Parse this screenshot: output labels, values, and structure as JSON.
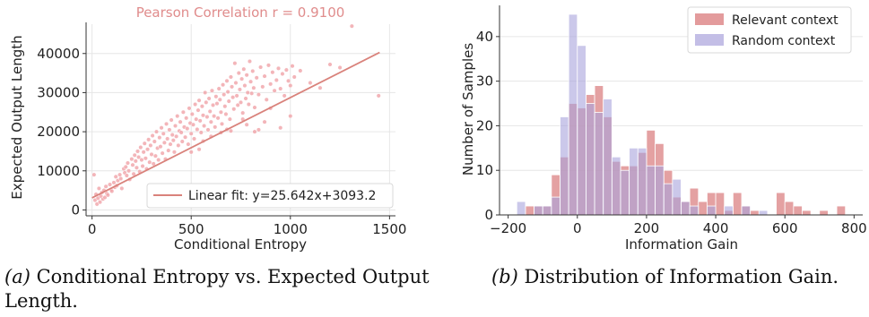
{
  "colors": {
    "scatter": "#f0a3a8",
    "fit_line": "#d9827b",
    "title": "#e08c8c",
    "relevant": "#d9797b",
    "random": "#a9a3dc",
    "grid": "#e6e6e6"
  },
  "captions": {
    "a_label": "(a)",
    "a_text": "Conditional Entropy vs. Expected Output Length.",
    "b_label": "(b)",
    "b_text": "Distribution of Information Gain."
  },
  "chart_data": [
    {
      "type": "scatter",
      "title": "Pearson Correlation r = 0.9100",
      "xlabel": "Conditional Entropy",
      "ylabel": "Expected Output Length",
      "xlim": [
        -30,
        1530
      ],
      "ylim": [
        -1500,
        47500
      ],
      "xticks": [
        0,
        500,
        1000,
        1500
      ],
      "yticks": [
        0,
        10000,
        20000,
        30000,
        40000
      ],
      "grid": true,
      "legend": {
        "position": "lower-right",
        "entries": [
          "Linear fit: y=25.642x+3093.2"
        ]
      },
      "fit": {
        "slope": 25.642,
        "intercept": 3093.2,
        "x_range": [
          0,
          1450
        ]
      },
      "points": [
        [
          10,
          9000
        ],
        [
          15,
          2500
        ],
        [
          20,
          4000
        ],
        [
          25,
          1500
        ],
        [
          30,
          3000
        ],
        [
          35,
          5500
        ],
        [
          40,
          2000
        ],
        [
          45,
          3500
        ],
        [
          50,
          4500
        ],
        [
          55,
          2800
        ],
        [
          60,
          5000
        ],
        [
          65,
          3200
        ],
        [
          70,
          6000
        ],
        [
          75,
          4200
        ],
        [
          80,
          3800
        ],
        [
          90,
          6500
        ],
        [
          95,
          5200
        ],
        [
          100,
          4800
        ],
        [
          110,
          7000
        ],
        [
          115,
          5800
        ],
        [
          120,
          8500
        ],
        [
          125,
          6200
        ],
        [
          130,
          7500
        ],
        [
          140,
          9000
        ],
        [
          145,
          8000
        ],
        [
          150,
          5500
        ],
        [
          160,
          10500
        ],
        [
          165,
          9500
        ],
        [
          170,
          11000
        ],
        [
          175,
          8800
        ],
        [
          180,
          12000
        ],
        [
          185,
          10000
        ],
        [
          190,
          7800
        ],
        [
          200,
          13000
        ],
        [
          205,
          11500
        ],
        [
          210,
          9200
        ],
        [
          215,
          14000
        ],
        [
          220,
          12500
        ],
        [
          225,
          10800
        ],
        [
          230,
          15000
        ],
        [
          235,
          13500
        ],
        [
          240,
          9800
        ],
        [
          245,
          16000
        ],
        [
          250,
          12800
        ],
        [
          255,
          11200
        ],
        [
          260,
          14800
        ],
        [
          265,
          17000
        ],
        [
          270,
          13200
        ],
        [
          275,
          10500
        ],
        [
          280,
          15500
        ],
        [
          285,
          18000
        ],
        [
          290,
          12200
        ],
        [
          295,
          16500
        ],
        [
          300,
          14200
        ],
        [
          305,
          19000
        ],
        [
          310,
          11800
        ],
        [
          315,
          17500
        ],
        [
          320,
          13800
        ],
        [
          325,
          20000
        ],
        [
          330,
          15800
        ],
        [
          335,
          12800
        ],
        [
          340,
          18500
        ],
        [
          345,
          16200
        ],
        [
          350,
          21000
        ],
        [
          355,
          14500
        ],
        [
          360,
          19500
        ],
        [
          365,
          17200
        ],
        [
          370,
          13000
        ],
        [
          375,
          22000
        ],
        [
          380,
          18200
        ],
        [
          385,
          15200
        ],
        [
          390,
          20500
        ],
        [
          395,
          16800
        ],
        [
          400,
          23000
        ],
        [
          405,
          19200
        ],
        [
          410,
          17800
        ],
        [
          415,
          14800
        ],
        [
          420,
          21500
        ],
        [
          425,
          18800
        ],
        [
          430,
          24000
        ],
        [
          435,
          16500
        ],
        [
          440,
          20200
        ],
        [
          445,
          22500
        ],
        [
          450,
          19800
        ],
        [
          455,
          17500
        ],
        [
          460,
          25000
        ],
        [
          465,
          21200
        ],
        [
          470,
          18600
        ],
        [
          475,
          23500
        ],
        [
          480,
          20800
        ],
        [
          485,
          16800
        ],
        [
          490,
          26000
        ],
        [
          495,
          22200
        ],
        [
          500,
          19500
        ],
        [
          505,
          24500
        ],
        [
          510,
          21800
        ],
        [
          515,
          18200
        ],
        [
          520,
          27000
        ],
        [
          525,
          23200
        ],
        [
          530,
          20600
        ],
        [
          535,
          25500
        ],
        [
          540,
          28000
        ],
        [
          545,
          22800
        ],
        [
          550,
          19800
        ],
        [
          555,
          26500
        ],
        [
          560,
          24200
        ],
        [
          565,
          21500
        ],
        [
          570,
          30000
        ],
        [
          575,
          27500
        ],
        [
          580,
          23800
        ],
        [
          585,
          20500
        ],
        [
          590,
          28500
        ],
        [
          595,
          25200
        ],
        [
          600,
          22500
        ],
        [
          605,
          30500
        ],
        [
          610,
          26800
        ],
        [
          615,
          24000
        ],
        [
          620,
          21200
        ],
        [
          625,
          29000
        ],
        [
          630,
          27200
        ],
        [
          635,
          23500
        ],
        [
          640,
          31000
        ],
        [
          645,
          28200
        ],
        [
          650,
          25000
        ],
        [
          655,
          22000
        ],
        [
          660,
          32000
        ],
        [
          665,
          29500
        ],
        [
          670,
          26500
        ],
        [
          675,
          24500
        ],
        [
          680,
          33000
        ],
        [
          685,
          30200
        ],
        [
          690,
          27800
        ],
        [
          695,
          23200
        ],
        [
          700,
          34000
        ],
        [
          705,
          31500
        ],
        [
          710,
          28800
        ],
        [
          715,
          25800
        ],
        [
          720,
          37500
        ],
        [
          725,
          32500
        ],
        [
          730,
          29200
        ],
        [
          735,
          26800
        ],
        [
          740,
          35000
        ],
        [
          745,
          30800
        ],
        [
          750,
          27500
        ],
        [
          755,
          33500
        ],
        [
          760,
          24800
        ],
        [
          765,
          36000
        ],
        [
          770,
          31800
        ],
        [
          775,
          28500
        ],
        [
          780,
          34500
        ],
        [
          785,
          30000
        ],
        [
          790,
          27000
        ],
        [
          795,
          38000
        ],
        [
          800,
          32800
        ],
        [
          805,
          29800
        ],
        [
          810,
          35500
        ],
        [
          815,
          31200
        ],
        [
          820,
          26200
        ],
        [
          830,
          33800
        ],
        [
          840,
          29500
        ],
        [
          850,
          36500
        ],
        [
          860,
          31500
        ],
        [
          870,
          34200
        ],
        [
          880,
          28200
        ],
        [
          890,
          37000
        ],
        [
          900,
          32200
        ],
        [
          910,
          35200
        ],
        [
          920,
          30500
        ],
        [
          930,
          33200
        ],
        [
          940,
          36200
        ],
        [
          950,
          31000
        ],
        [
          960,
          34800
        ],
        [
          970,
          29200
        ],
        [
          980,
          35800
        ],
        [
          990,
          33000
        ],
        [
          1000,
          31800
        ],
        [
          1010,
          36800
        ],
        [
          1020,
          34000
        ],
        [
          1050,
          35600
        ],
        [
          1100,
          32500
        ],
        [
          1150,
          31200
        ],
        [
          1200,
          37200
        ],
        [
          1250,
          36400
        ],
        [
          1310,
          47000
        ],
        [
          1445,
          29200
        ],
        [
          1000,
          24000
        ],
        [
          950,
          21000
        ],
        [
          900,
          26000
        ],
        [
          870,
          22500
        ],
        [
          840,
          20500
        ],
        [
          820,
          20000
        ],
        [
          780,
          21800
        ],
        [
          760,
          23200
        ],
        [
          700,
          20200
        ],
        [
          680,
          20600
        ],
        [
          650,
          19800
        ],
        [
          600,
          18800
        ],
        [
          560,
          17600
        ],
        [
          540,
          15500
        ],
        [
          500,
          14800
        ]
      ]
    },
    {
      "type": "histogram",
      "xlabel": "Information Gain",
      "ylabel": "Number of Samples",
      "xlim": [
        -225,
        825
      ],
      "ylim": [
        0,
        47
      ],
      "xticks": [
        -200,
        0,
        200,
        400,
        600,
        800
      ],
      "yticks": [
        0,
        10,
        20,
        30,
        40
      ],
      "grid": true,
      "legend": {
        "position": "top-right"
      },
      "bin_edges": [
        -175,
        -150,
        -125,
        -100,
        -75,
        -50,
        -25,
        0,
        25,
        50,
        75,
        100,
        125,
        150,
        175,
        200,
        225,
        250,
        275,
        300,
        325,
        350,
        375,
        400,
        425,
        450,
        475,
        500,
        525,
        550,
        575,
        600,
        625,
        650,
        675,
        700,
        725,
        750,
        775
      ],
      "series": [
        {
          "name": "Relevant context",
          "values": [
            0,
            2,
            2,
            2,
            9,
            13,
            25,
            24,
            27,
            29,
            22,
            12,
            11,
            11,
            14,
            19,
            16,
            10,
            4,
            3,
            6,
            3,
            5,
            5,
            1,
            5,
            2,
            1,
            0,
            0,
            5,
            3,
            2,
            1,
            0,
            1,
            0,
            2
          ]
        },
        {
          "name": "Random context",
          "values": [
            3,
            0,
            2,
            2,
            4,
            22,
            45,
            38,
            25,
            23,
            26,
            13,
            10,
            15,
            15,
            11,
            11,
            7,
            8,
            3,
            2,
            0,
            2,
            0,
            2,
            0,
            2,
            0,
            1,
            0,
            0,
            0,
            0,
            0,
            0,
            0,
            0,
            0
          ]
        }
      ]
    }
  ]
}
